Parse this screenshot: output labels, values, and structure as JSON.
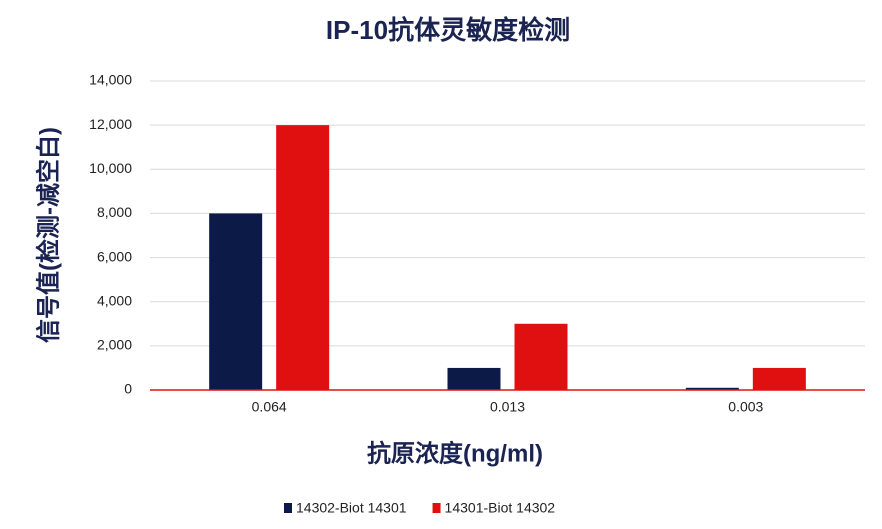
{
  "chart_data": {
    "type": "bar",
    "title": "IP-10抗体灵敏度检测",
    "x_label": "抗原浓度(ng/ml)",
    "y_label": "信号值(检测-减空白)",
    "categories": [
      "0.064",
      "0.013",
      "0.003"
    ],
    "series": [
      {
        "name": "14302-Biot 14301",
        "color": "#0c1a48",
        "values": [
          8000,
          1000,
          100
        ]
      },
      {
        "name": "14301-Biot 14302",
        "color": "#e01010",
        "values": [
          12000,
          3000,
          1000
        ]
      }
    ],
    "ylim": [
      0,
      14000
    ],
    "yticks": [
      0,
      {
        "value": 2000,
        "label": "2,000"
      },
      {
        "value": 4000,
        "label": "4,000"
      },
      {
        "value": 6000,
        "label": "6,000"
      },
      {
        "value": 8000,
        "label": "8,000"
      },
      {
        "value": 10000,
        "label": "10,000"
      },
      {
        "value": 12000,
        "label": "12,000"
      },
      {
        "value": 14000,
        "label": "14,000"
      }
    ],
    "grid": true,
    "legend": "bottom"
  }
}
